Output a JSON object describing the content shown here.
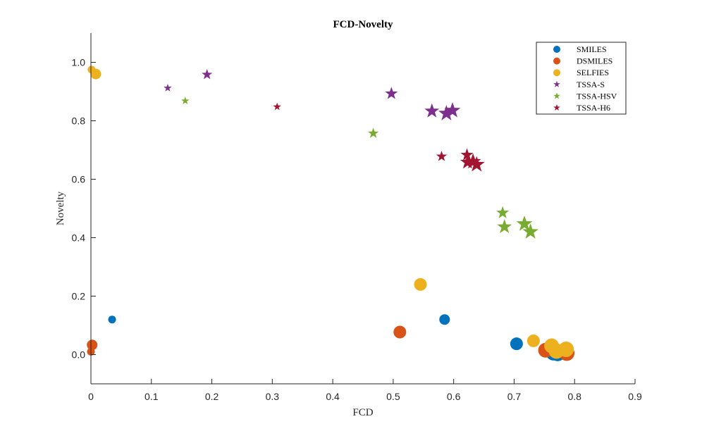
{
  "chart_data": {
    "type": "scatter",
    "title": "FCD-Novelty",
    "xlabel": "FCD",
    "ylabel": "Novelty",
    "xlim": [
      0,
      0.9
    ],
    "ylim": [
      -0.1,
      1.1
    ],
    "xticks": [
      "0",
      "0.1",
      "0.2",
      "0.3",
      "0.4",
      "0.5",
      "0.6",
      "0.7",
      "0.8",
      "0.9"
    ],
    "yticks": [
      "0.0",
      "0.2",
      "0.4",
      "0.6",
      "0.8",
      "1.0"
    ],
    "grid": false,
    "legend_position": "top-right",
    "series": [
      {
        "name": "SMILES",
        "marker": "circle",
        "color": "#0072BD",
        "points": [
          {
            "x": 0.035,
            "y": 0.12,
            "size": 1
          },
          {
            "x": 0.585,
            "y": 0.12,
            "size": 2
          },
          {
            "x": 0.704,
            "y": 0.037,
            "size": 3
          },
          {
            "x": 0.765,
            "y": 0.005,
            "size": 4
          },
          {
            "x": 0.772,
            "y": 0.004,
            "size": 5
          }
        ]
      },
      {
        "name": "DSMILES",
        "marker": "circle",
        "color": "#D95319",
        "points": [
          {
            "x": 0.0,
            "y": 0.01,
            "size": 1
          },
          {
            "x": 0.002,
            "y": 0.033,
            "size": 2
          },
          {
            "x": 0.511,
            "y": 0.077,
            "size": 3
          },
          {
            "x": 0.752,
            "y": 0.015,
            "size": 4
          },
          {
            "x": 0.787,
            "y": 0.005,
            "size": 5
          }
        ]
      },
      {
        "name": "SELFIES",
        "marker": "circle",
        "color": "#EDB120",
        "points": [
          {
            "x": 0.001,
            "y": 0.975,
            "size": 1
          },
          {
            "x": 0.008,
            "y": 0.96,
            "size": 2
          },
          {
            "x": 0.545,
            "y": 0.24,
            "size": 3
          },
          {
            "x": 0.732,
            "y": 0.047,
            "size": 3
          },
          {
            "x": 0.762,
            "y": 0.03,
            "size": 4
          },
          {
            "x": 0.77,
            "y": 0.012,
            "size": 5
          },
          {
            "x": 0.786,
            "y": 0.018,
            "size": 5
          }
        ]
      },
      {
        "name": "TSSA-S",
        "marker": "star",
        "color": "#7E2F8E",
        "points": [
          {
            "x": 0.127,
            "y": 0.912,
            "size": 1
          },
          {
            "x": 0.192,
            "y": 0.958,
            "size": 2
          },
          {
            "x": 0.497,
            "y": 0.893,
            "size": 3
          },
          {
            "x": 0.564,
            "y": 0.833,
            "size": 4
          },
          {
            "x": 0.588,
            "y": 0.825,
            "size": 5
          },
          {
            "x": 0.598,
            "y": 0.835,
            "size": 5
          }
        ]
      },
      {
        "name": "TSSA-HSV",
        "marker": "star",
        "color": "#77AC30",
        "points": [
          {
            "x": 0.156,
            "y": 0.868,
            "size": 1
          },
          {
            "x": 0.467,
            "y": 0.757,
            "size": 2
          },
          {
            "x": 0.681,
            "y": 0.485,
            "size": 3
          },
          {
            "x": 0.684,
            "y": 0.437,
            "size": 4
          },
          {
            "x": 0.717,
            "y": 0.447,
            "size": 5
          },
          {
            "x": 0.727,
            "y": 0.42,
            "size": 5
          }
        ]
      },
      {
        "name": "TSSA-H6",
        "marker": "star",
        "color": "#A2142F",
        "points": [
          {
            "x": 0.308,
            "y": 0.848,
            "size": 1
          },
          {
            "x": 0.58,
            "y": 0.678,
            "size": 2
          },
          {
            "x": 0.622,
            "y": 0.683,
            "size": 3
          },
          {
            "x": 0.623,
            "y": 0.658,
            "size": 4
          },
          {
            "x": 0.632,
            "y": 0.66,
            "size": 5
          },
          {
            "x": 0.638,
            "y": 0.65,
            "size": 5
          }
        ]
      }
    ]
  }
}
